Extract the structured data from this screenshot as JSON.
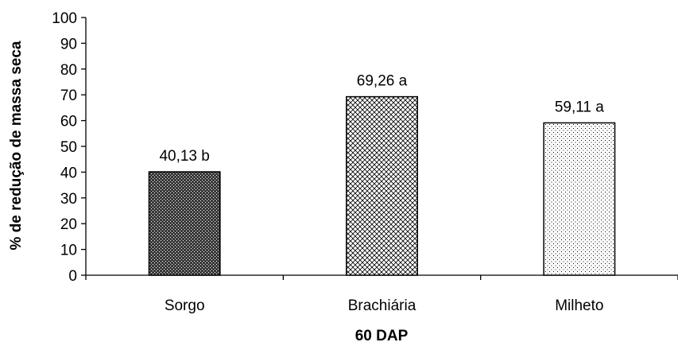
{
  "chart_data": {
    "type": "bar",
    "categories": [
      "Sorgo",
      "Brachiária",
      "Milheto"
    ],
    "values": [
      40.13,
      69.26,
      59.11
    ],
    "data_labels": [
      "40,13 b",
      "69,26 a",
      "59,11 a"
    ],
    "patterns": [
      "dense-dark-checker",
      "crosshatch",
      "sparse-dots"
    ],
    "xlabel": "60 DAP",
    "ylabel": "% de redução de massa seca",
    "ylim": [
      0,
      100
    ],
    "yticks": [
      0,
      10,
      20,
      30,
      40,
      50,
      60,
      70,
      80,
      90,
      100
    ],
    "grid": false,
    "legend": false,
    "bar_edge_color": "#000000",
    "text_color": "#000000"
  }
}
